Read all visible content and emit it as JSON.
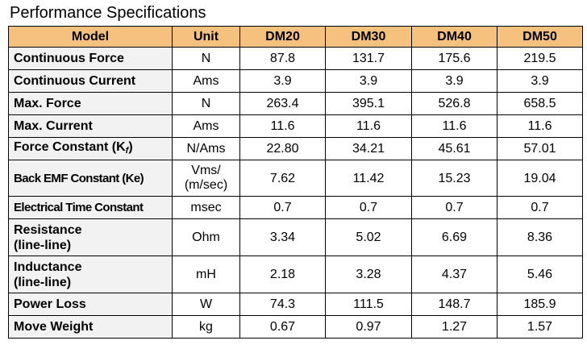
{
  "title": "Performance Specifications",
  "columns": [
    "Model",
    "Unit",
    "DM20",
    "DM30",
    "DM40",
    "DM50"
  ],
  "rows": [
    {
      "param": "Continuous Force",
      "unit": "N",
      "values": [
        "87.8",
        "131.7",
        "175.6",
        "219.5"
      ]
    },
    {
      "param": "Continuous Current",
      "unit": "Ams",
      "values": [
        "3.9",
        "3.9",
        "3.9",
        "3.9"
      ]
    },
    {
      "param": "Max. Force",
      "unit": "N",
      "values": [
        "263.4",
        "395.1",
        "526.8",
        "658.5"
      ]
    },
    {
      "param": "Max. Current",
      "unit": "Ams",
      "values": [
        "11.6",
        "11.6",
        "11.6",
        "11.6"
      ]
    },
    {
      "param": "Force Constant (K",
      "param_sub": "f",
      "param_end": ")",
      "unit": "N/Ams",
      "values": [
        "22.80",
        "34.21",
        "45.61",
        "57.01"
      ]
    },
    {
      "param": "Back EMF Constant (Ke)",
      "unit_line1": "Vms/",
      "unit_line2": "(m/sec)",
      "values": [
        "7.62",
        "11.42",
        "15.23",
        "19.04"
      ]
    },
    {
      "param": "Electrical Time Constant",
      "unit": "msec",
      "values": [
        "0.7",
        "0.7",
        "0.7",
        "0.7"
      ]
    },
    {
      "param_line1": "Resistance",
      "param_line2": "(line-line)",
      "unit": "Ohm",
      "values": [
        "3.34",
        "5.02",
        "6.69",
        "8.36"
      ]
    },
    {
      "param_line1": "Inductance",
      "param_line2": "(line-line)",
      "unit": "mH",
      "values": [
        "2.18",
        "3.28",
        "4.37",
        "5.46"
      ]
    },
    {
      "param": "Power Loss",
      "unit": "W",
      "values": [
        "74.3",
        "111.5",
        "148.7",
        "185.9"
      ]
    },
    {
      "param": "Move Weight",
      "unit": "kg",
      "values": [
        "0.67",
        "0.97",
        "1.27",
        "1.57"
      ]
    }
  ]
}
